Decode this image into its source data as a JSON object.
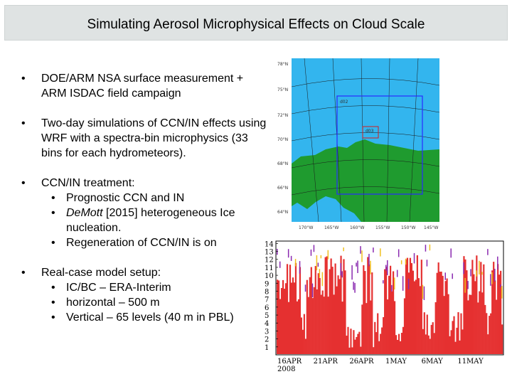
{
  "title": "Simulating Aerosol Microphysical Effects on Cloud Scale",
  "bullets": [
    {
      "text": "DOE/ARM NSA surface measurement + ARM ISDAC field campaign"
    },
    {
      "text": "Two-day simulations of CCN/IN effects using WRF with a spectra-bin microphysics (33 bins for each hydrometeors)."
    },
    {
      "text": "CCN/IN treatment:",
      "sub": [
        {
          "em": "",
          "text": "Prognostic CCN and IN"
        },
        {
          "em": "DeMott",
          "text": " [2015] heterogeneous Ice nucleation."
        },
        {
          "em": "",
          "text": "Regeneration of CCN/IN is on"
        }
      ]
    },
    {
      "text": "Real-case model setup:",
      "sub": [
        {
          "em": "",
          "text": "IC/BC – ERA-Interim"
        },
        {
          "em": "",
          "text": "horizontal – 500 m"
        },
        {
          "em": "",
          "text": "Vertical  – 65 levels (40 m in PBL)"
        }
      ]
    }
  ],
  "bullet_glyph": "•",
  "map": {
    "domain_labels": [
      "d02",
      "d03"
    ],
    "lat_labels": [
      "78°N",
      "75°N",
      "72°N",
      "70°N",
      "68°N",
      "66°N",
      "64°N"
    ],
    "lon_labels": [
      "170°W",
      "165°W",
      "160°W",
      "155°W",
      "150°W",
      "145°W"
    ],
    "colors": {
      "ocean": "#33b5ee",
      "land": "#1f9b2f",
      "frame_inner": "#2a2aff",
      "frame_d03": "#d02020"
    }
  },
  "plot": {
    "y_ticks": [
      "1",
      "2",
      "3",
      "4",
      "5",
      "6",
      "7",
      "8",
      "9",
      "10",
      "11",
      "12",
      "13",
      "14"
    ],
    "x_ticks": [
      "16APR",
      "21APR",
      "26APR",
      "1MAY",
      "6MAY",
      "11MAY"
    ],
    "x_year": "2008",
    "colors": {
      "main": "#e53030",
      "secondary": "#8a2ab0",
      "accent": "#f0c020"
    }
  }
}
